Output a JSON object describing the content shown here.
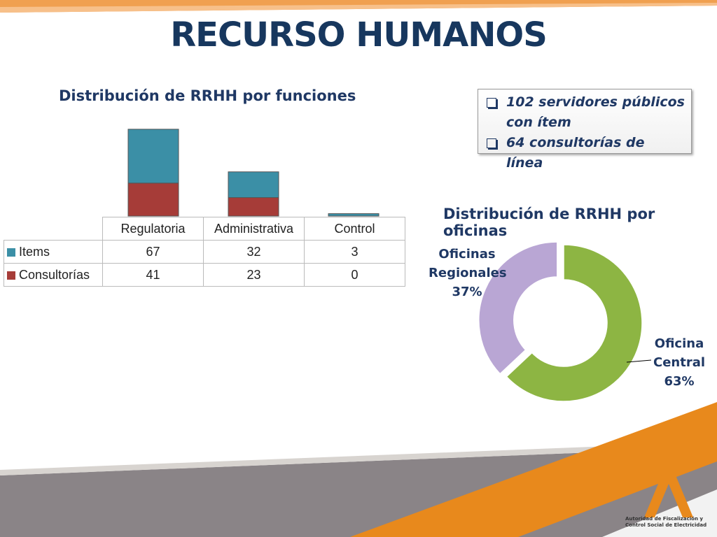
{
  "title": "RECURSO HUMANOS",
  "bullets": [
    "102 servidores públicos con ítem",
    "64 consultorías de línea"
  ],
  "logo": {
    "text": "Autoridad de Fiscalización y Control Social de Electricidad"
  },
  "chart_data": [
    {
      "type": "stacked-bar",
      "title": "Distribución de RRHH por funciones",
      "categories": [
        "Regulatoria",
        "Administrativa",
        "Control"
      ],
      "series": [
        {
          "name": "Consultorías",
          "color": "#a63c38",
          "values": [
            41,
            23,
            0
          ]
        },
        {
          "name": "Items",
          "color": "#3b8fa6",
          "values": [
            67,
            32,
            3
          ]
        }
      ]
    },
    {
      "type": "donut",
      "title": "Distribución de RRHH por oficinas",
      "categories": [
        "Oficina Central",
        "Oficinas Regionales"
      ],
      "values": [
        63,
        37
      ],
      "value_labels": [
        "63%",
        "37%"
      ],
      "colors": [
        "#8db543",
        "#b9a6d4"
      ]
    }
  ]
}
